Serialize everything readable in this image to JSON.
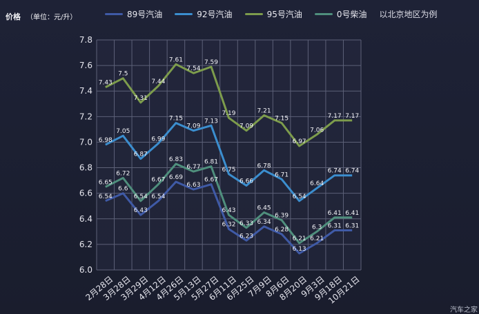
{
  "header": {
    "y_title": "价格",
    "y_unit": "（单位：元/升）",
    "note": "以北京地区为例"
  },
  "watermark": "汽车之家",
  "chart_data": {
    "type": "line",
    "categories": [
      "2月28日",
      "3月28日",
      "3月29日",
      "4月12日",
      "4月26日",
      "5月13日",
      "5月27日",
      "6月11日",
      "6月25日",
      "7月9日",
      "8月6日",
      "8月20日",
      "9月3日",
      "9月18日",
      "10月21日"
    ],
    "ylim": [
      6.0,
      7.8
    ],
    "yticks": [
      "6.0",
      "6.2",
      "6.4",
      "6.6",
      "6.8",
      "7.0",
      "7.2",
      "7.4",
      "7.6",
      "7.8"
    ],
    "grid": true,
    "legend_position": "top",
    "series": [
      {
        "name": "89号汽油",
        "color": "#3f5aa6",
        "values": [
          6.54,
          6.6,
          6.43,
          6.54,
          6.69,
          6.63,
          6.67,
          6.32,
          6.23,
          6.34,
          6.28,
          6.13,
          6.21,
          6.31,
          6.31
        ],
        "labels": [
          "6.54",
          "6.6",
          "6.43",
          "6.54",
          "6.69",
          "6.63",
          "6.67",
          "6.32",
          "6.23",
          "6.34",
          "6.28",
          "6.13",
          "6.21",
          "6.31",
          "6.31"
        ]
      },
      {
        "name": "92号汽油",
        "color": "#3b8ecf",
        "values": [
          6.98,
          7.05,
          6.87,
          6.99,
          7.15,
          7.09,
          7.13,
          6.75,
          6.66,
          6.78,
          6.71,
          6.54,
          6.64,
          6.74,
          6.74
        ],
        "labels": [
          "6.98",
          "7.05",
          "6.87",
          "6.99",
          "7.15",
          "7.09",
          "7.13",
          "6.75",
          "6.66",
          "6.78",
          "6.71",
          "6.54",
          "6.64",
          "6.74",
          "6.74"
        ]
      },
      {
        "name": "95号汽油",
        "color": "#7d9c4c",
        "values": [
          7.43,
          7.5,
          7.31,
          7.44,
          7.61,
          7.54,
          7.59,
          7.19,
          7.09,
          7.21,
          7.15,
          6.97,
          7.06,
          7.17,
          7.17
        ],
        "labels": [
          "7.43",
          "7.5",
          "7.31",
          "7.44",
          "7.61",
          "7.54",
          "7.59",
          "7.19",
          "7.09",
          "7.21",
          "7.15",
          "6.97",
          "7.06",
          "7.17",
          "7.17"
        ]
      },
      {
        "name": "0号柴油",
        "color": "#4f8f7d",
        "values": [
          6.65,
          6.72,
          6.54,
          6.67,
          6.83,
          6.77,
          6.81,
          6.43,
          6.33,
          6.45,
          6.39,
          6.21,
          6.3,
          6.41,
          6.41
        ],
        "labels": [
          "6.65",
          "6.72",
          "6.54",
          "6.67",
          "6.83",
          "6.77",
          "6.81",
          "6.43",
          "6.33",
          "6.45",
          "6.39",
          "6.21",
          "6.3",
          "6.41",
          "6.41"
        ]
      }
    ]
  }
}
